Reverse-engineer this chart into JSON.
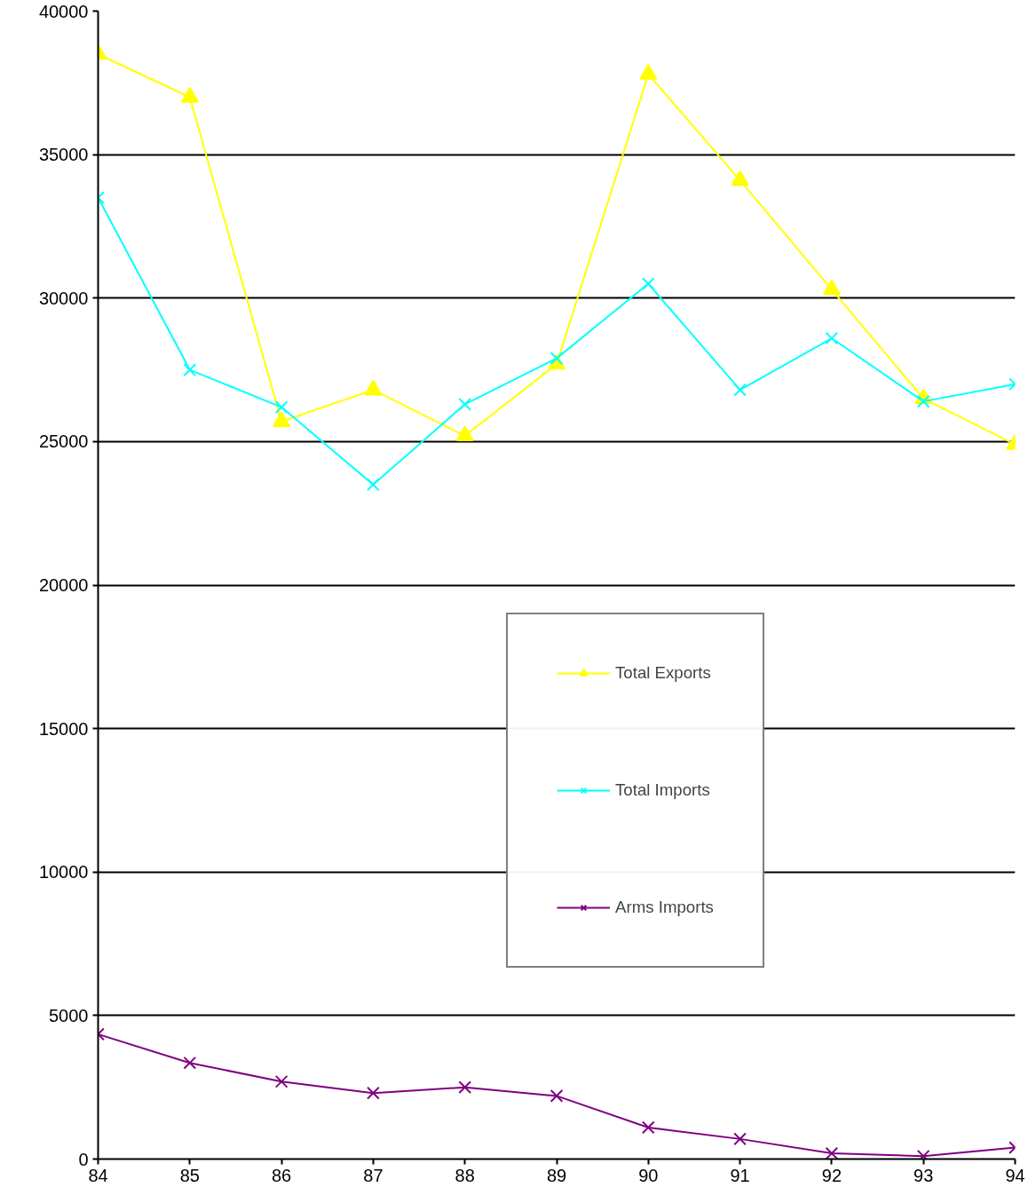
{
  "chart_data": {
    "type": "line",
    "x": [
      84,
      85,
      86,
      87,
      88,
      89,
      90,
      91,
      92,
      93,
      94
    ],
    "xlim": [
      84,
      94
    ],
    "xticks": [
      84,
      85,
      86,
      87,
      88,
      89,
      90,
      91,
      92,
      93,
      94
    ],
    "ylim": [
      0,
      40000
    ],
    "yticks": [
      0,
      5000,
      10000,
      15000,
      20000,
      25000,
      30000,
      35000,
      40000
    ],
    "grid": "y",
    "legend": "right",
    "series": [
      {
        "name": "Total Exports",
        "color": "#ffff00",
        "marker": "triangle",
        "values": [
          38500,
          37000,
          25700,
          26800,
          25200,
          27700,
          37800,
          34100,
          30300,
          26500,
          24900
        ]
      },
      {
        "name": "Total Imports",
        "color": "#00ffff",
        "marker": "cross",
        "values": [
          33500,
          27500,
          26200,
          23500,
          26300,
          27900,
          30500,
          26800,
          28600,
          26400,
          27000
        ]
      },
      {
        "name": "Arms Imports",
        "color": "#800080",
        "marker": "cross",
        "values": [
          4350,
          3350,
          2700,
          2300,
          2500,
          2200,
          1100,
          700,
          200,
          100,
          400
        ]
      }
    ]
  }
}
